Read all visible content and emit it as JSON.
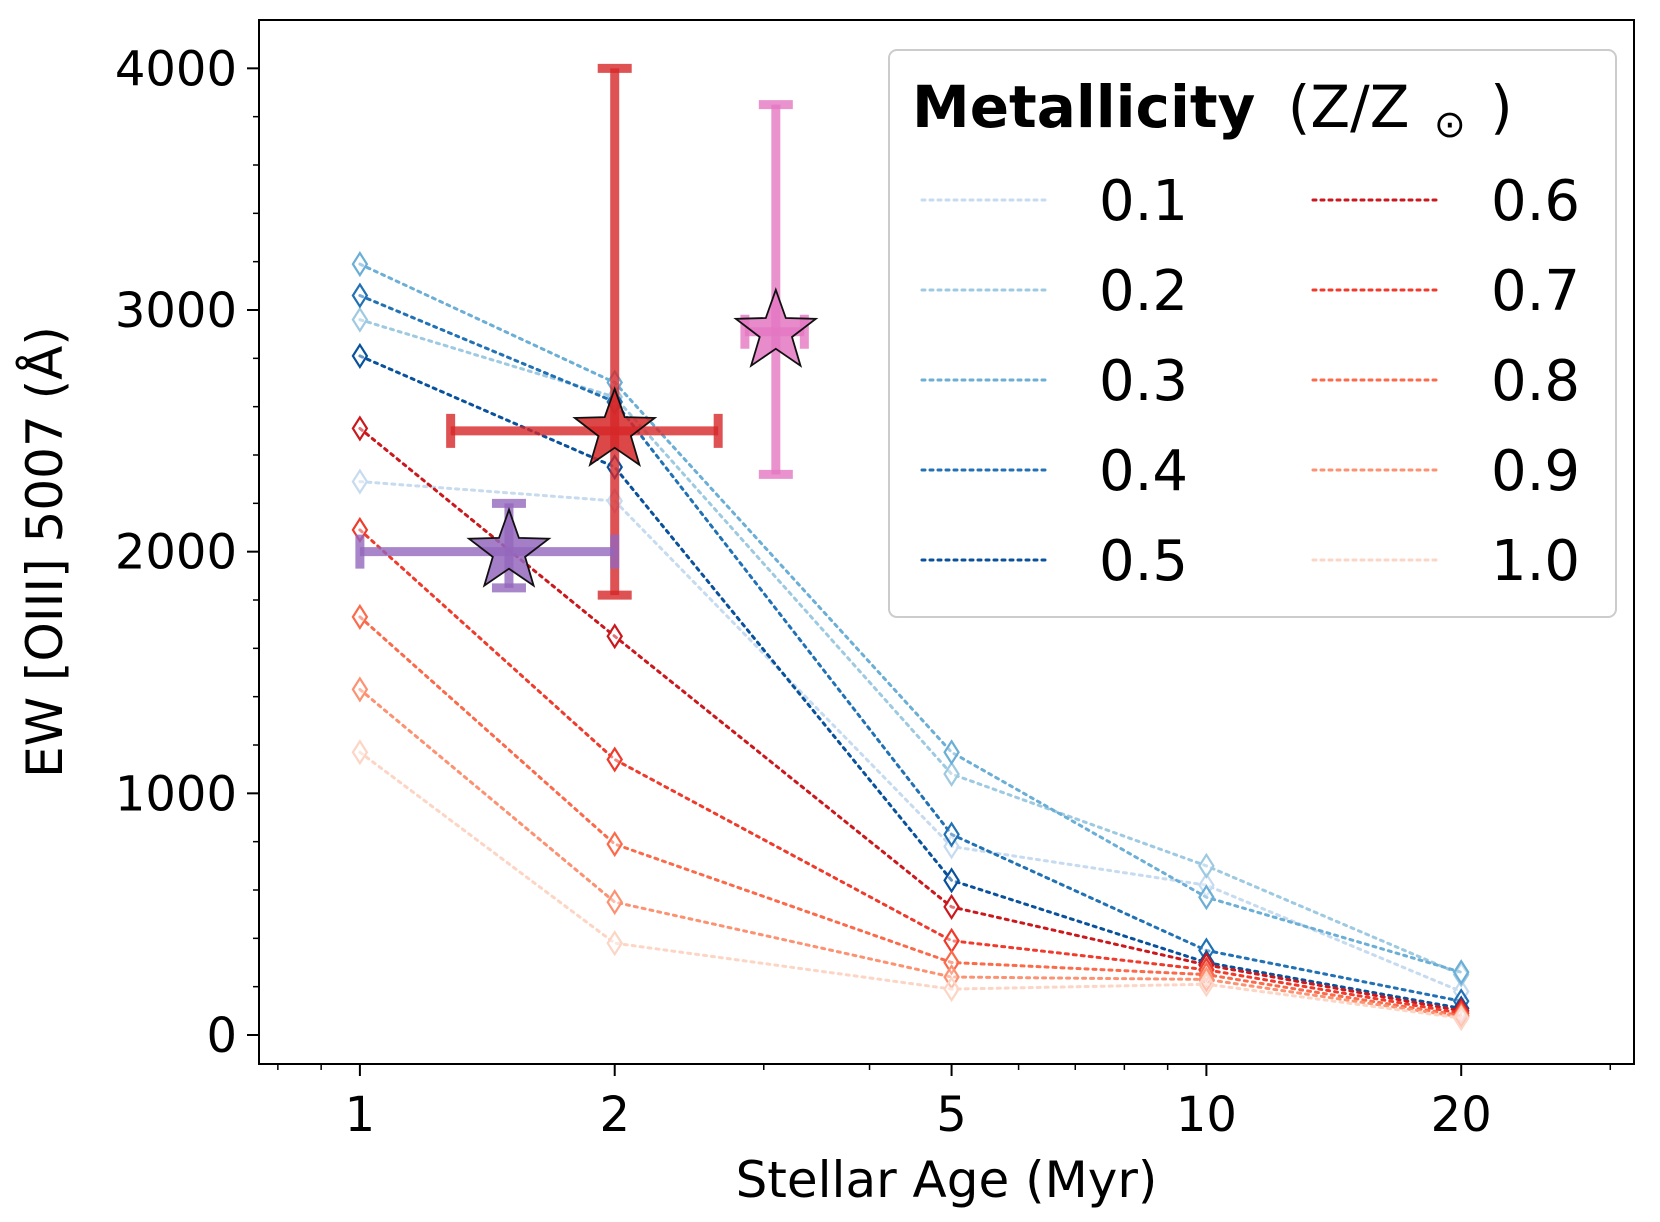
{
  "chart_data": {
    "type": "line",
    "title": "",
    "xlabel": "Stellar Age (Myr)",
    "ylabel": "EW [OIII] 5007 (Å)",
    "xscale": "log",
    "xlim": [
      0.76,
      32
    ],
    "ylim": [
      -120,
      4200
    ],
    "x": [
      1,
      2,
      5,
      10,
      20
    ],
    "x_tick_labels": [
      "1",
      "2",
      "5",
      "10",
      "20"
    ],
    "y_ticks": [
      0,
      1000,
      2000,
      3000,
      4000
    ],
    "y_tick_labels": [
      "0",
      "1000",
      "2000",
      "3000",
      "4000"
    ],
    "legend": {
      "title_bold": "Metallicity",
      "title_unit": "(Z/Z",
      "title_sun": "⊙",
      "title_close": ")",
      "placement": "top-right",
      "ncol": 2
    },
    "series": [
      {
        "name": "0.1",
        "color": "#c6dbef",
        "values": [
          2290,
          2210,
          780,
          620,
          180
        ]
      },
      {
        "name": "0.2",
        "color": "#9ecae1",
        "values": [
          2960,
          2640,
          1080,
          700,
          250
        ]
      },
      {
        "name": "0.3",
        "color": "#6baed6",
        "values": [
          3190,
          2700,
          1170,
          570,
          260
        ]
      },
      {
        "name": "0.4",
        "color": "#2171b5",
        "values": [
          3060,
          2620,
          830,
          350,
          140
        ]
      },
      {
        "name": "0.5",
        "color": "#08519c",
        "values": [
          2810,
          2350,
          640,
          300,
          110
        ]
      },
      {
        "name": "0.6",
        "color": "#cb181d",
        "values": [
          2510,
          1650,
          530,
          290,
          100
        ]
      },
      {
        "name": "0.7",
        "color": "#ef3b2c",
        "values": [
          2090,
          1140,
          390,
          270,
          90
        ]
      },
      {
        "name": "0.8",
        "color": "#fb6a4a",
        "values": [
          1730,
          790,
          300,
          250,
          80
        ]
      },
      {
        "name": "0.9",
        "color": "#fc9272",
        "values": [
          1430,
          550,
          240,
          230,
          75
        ]
      },
      {
        "name": "1.0",
        "color": "#fcd5c5",
        "values": [
          1170,
          380,
          190,
          210,
          70
        ]
      }
    ],
    "observations": [
      {
        "name": "red-star",
        "color": "#d62728",
        "x": 2.0,
        "y": 2500,
        "x_err": [
          1.28,
          2.65
        ],
        "y_err": [
          1820,
          4000
        ]
      },
      {
        "name": "purple-star",
        "color": "#9467bd",
        "x": 1.5,
        "y": 2000,
        "x_err": [
          1.0,
          2.0
        ],
        "y_err": [
          1850,
          2200
        ]
      },
      {
        "name": "pink-star",
        "color": "#e377c2",
        "x": 3.1,
        "y": 2910,
        "x_err": [
          2.85,
          3.35
        ],
        "y_err": [
          2320,
          3850
        ]
      }
    ]
  }
}
